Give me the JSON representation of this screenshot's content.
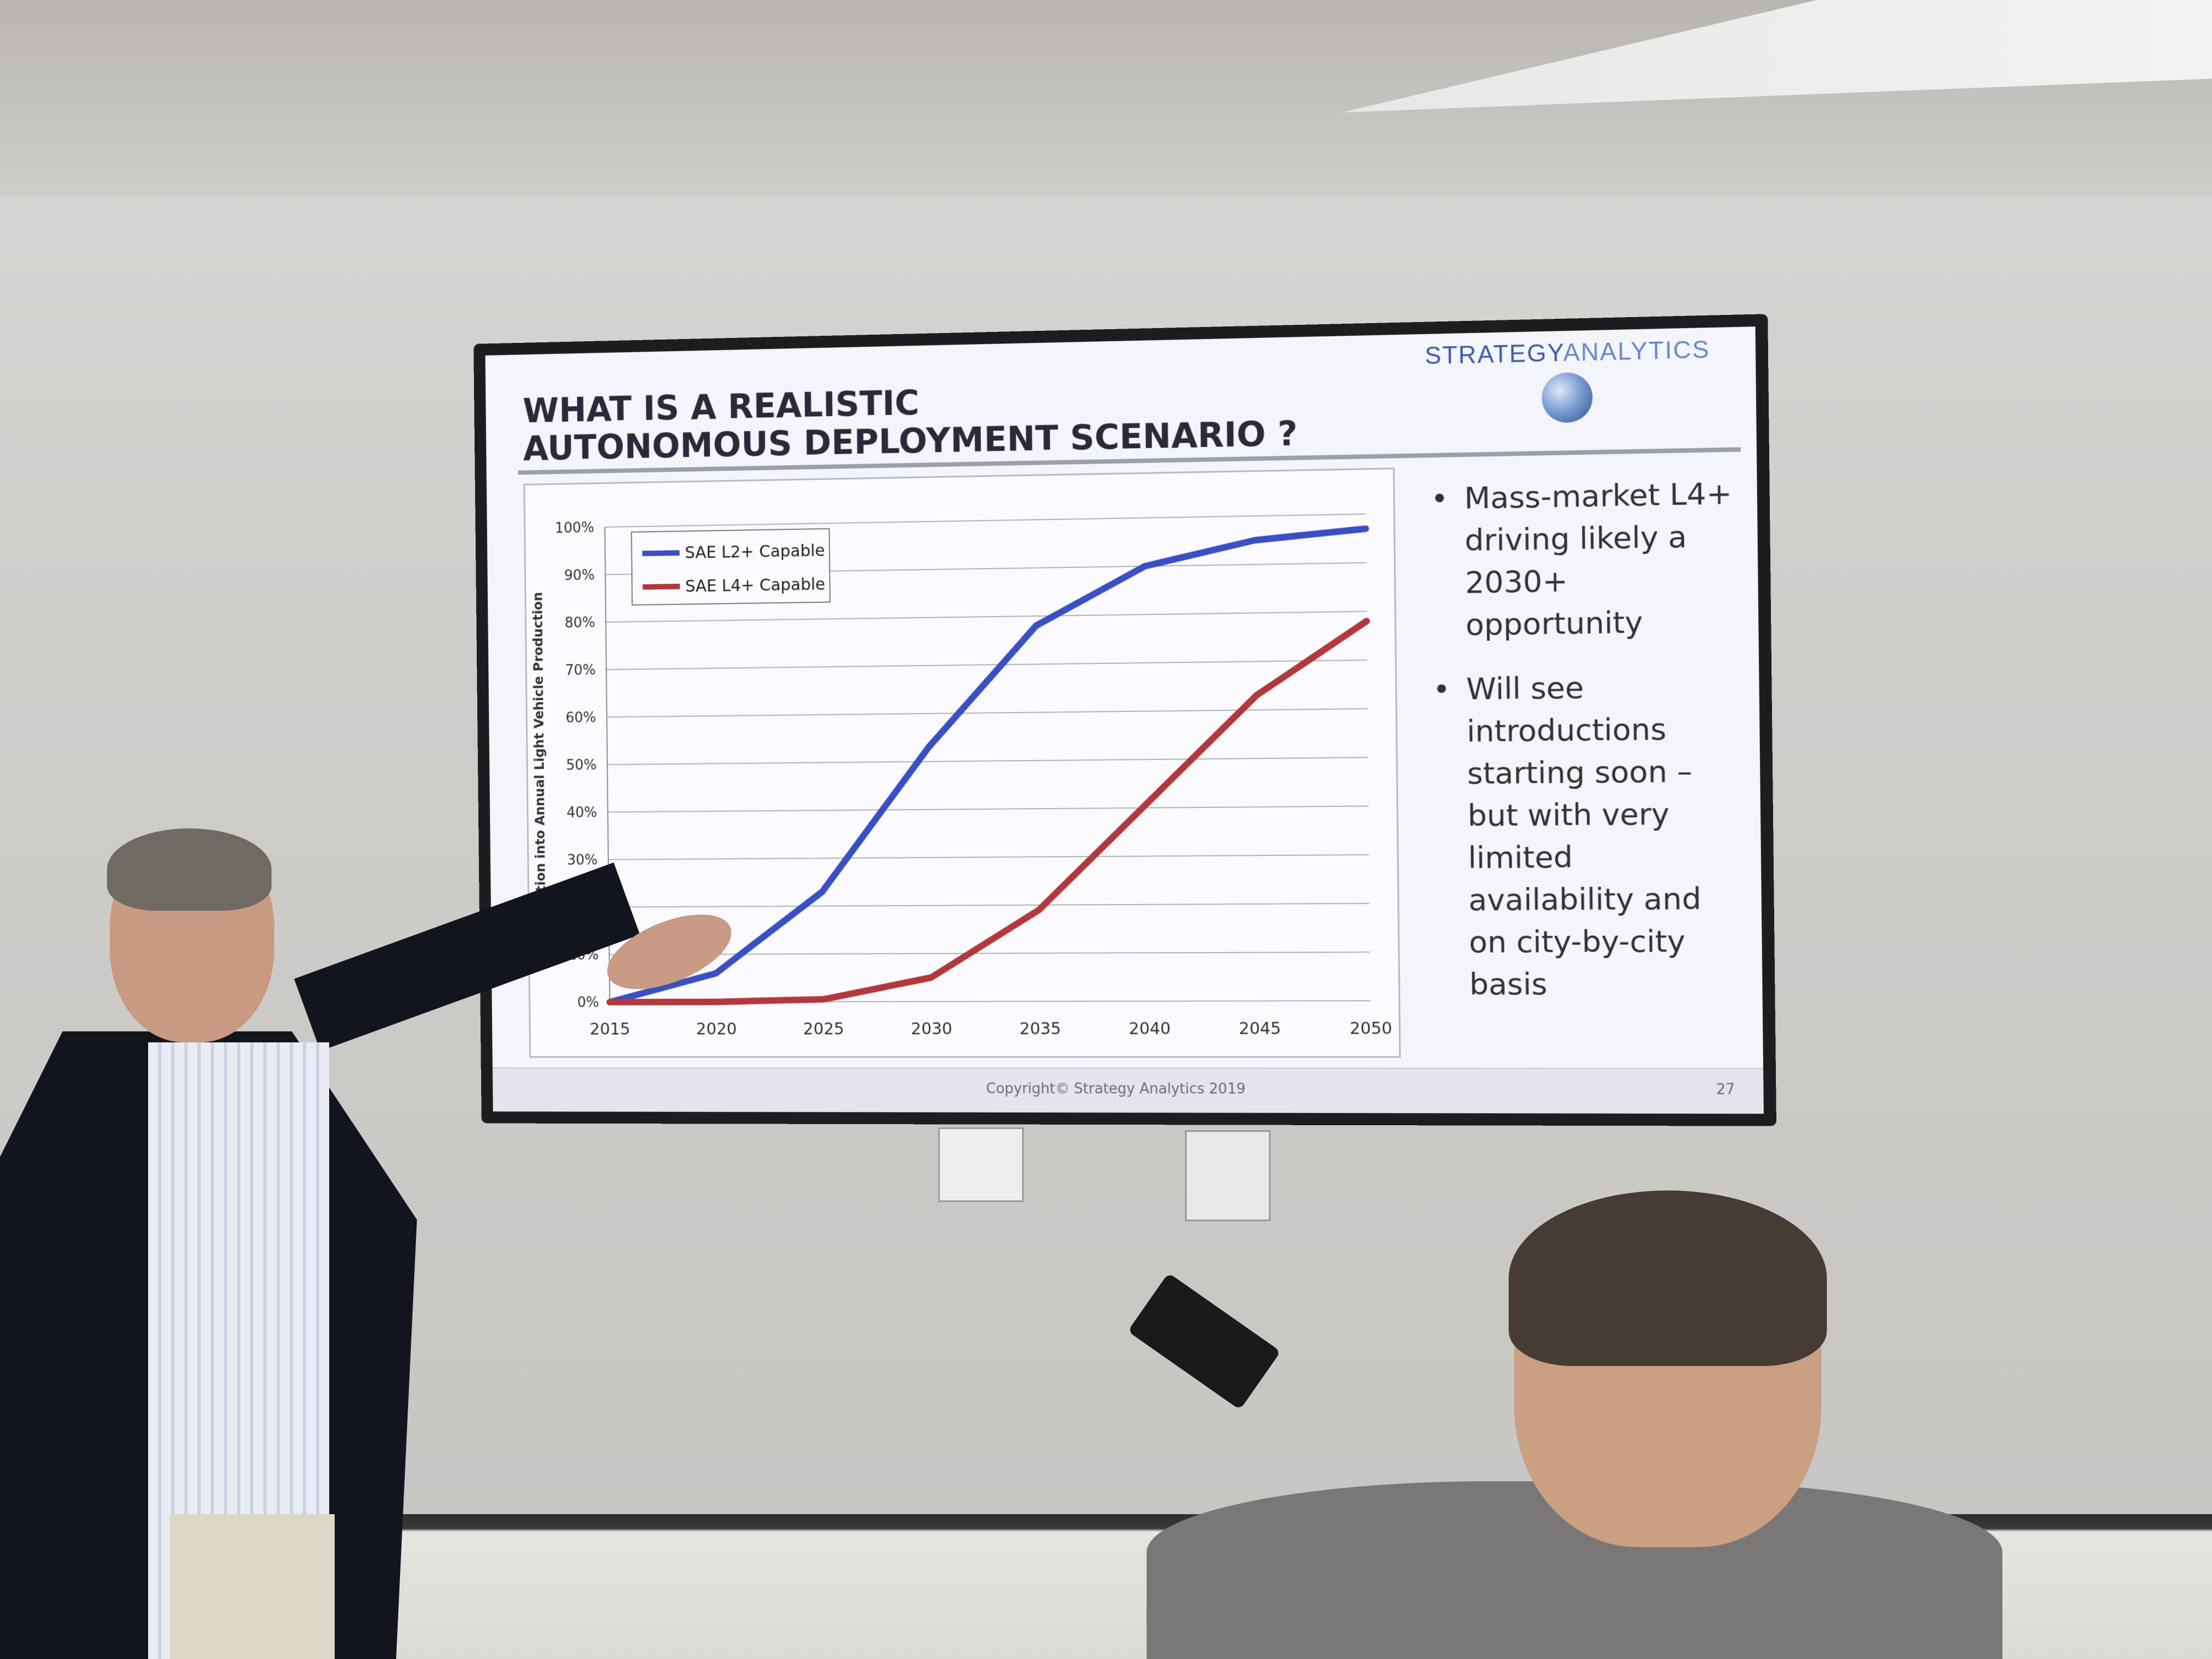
{
  "slide": {
    "title": "WHAT IS A REALISTIC\nAUTONOMOUS DEPLOYMENT SCENARIO ?",
    "brand_strong": "STRATEGY",
    "brand_light": "ANALYTICS",
    "bullets": [
      "Mass-market L4+ driving likely a 2030+ opportunity",
      "Will see introductions starting soon – but with very limited availability and on city-by-city basis"
    ],
    "copyright": "Copyright© Strategy Analytics 2019",
    "page_number": "27"
  },
  "chart_data": {
    "type": "line",
    "title": "",
    "xlabel": "",
    "ylabel": "Penetration into Annual Light Vehicle Production",
    "x": [
      2015,
      2020,
      2025,
      2030,
      2035,
      2040,
      2045,
      2050
    ],
    "x_tick_labels": [
      "2015",
      "2020",
      "2025",
      "2030",
      "2035",
      "2040",
      "2045",
      "2050"
    ],
    "y_tick_labels": [
      "0%",
      "10%",
      "20%",
      "30%",
      "40%",
      "50%",
      "60%",
      "70%",
      "80%",
      "90%",
      "100%"
    ],
    "ylim": [
      0,
      100
    ],
    "grid": true,
    "legend_position": "top-left",
    "series": [
      {
        "name": "SAE L2+ Capable",
        "color": "#3a4fc4",
        "values": [
          0,
          6,
          23,
          53,
          78,
          90,
          95,
          97
        ]
      },
      {
        "name": "SAE L4+ Capable",
        "color": "#b2383c",
        "values": [
          0,
          0,
          0.5,
          5,
          19,
          41,
          63,
          78
        ]
      }
    ]
  }
}
